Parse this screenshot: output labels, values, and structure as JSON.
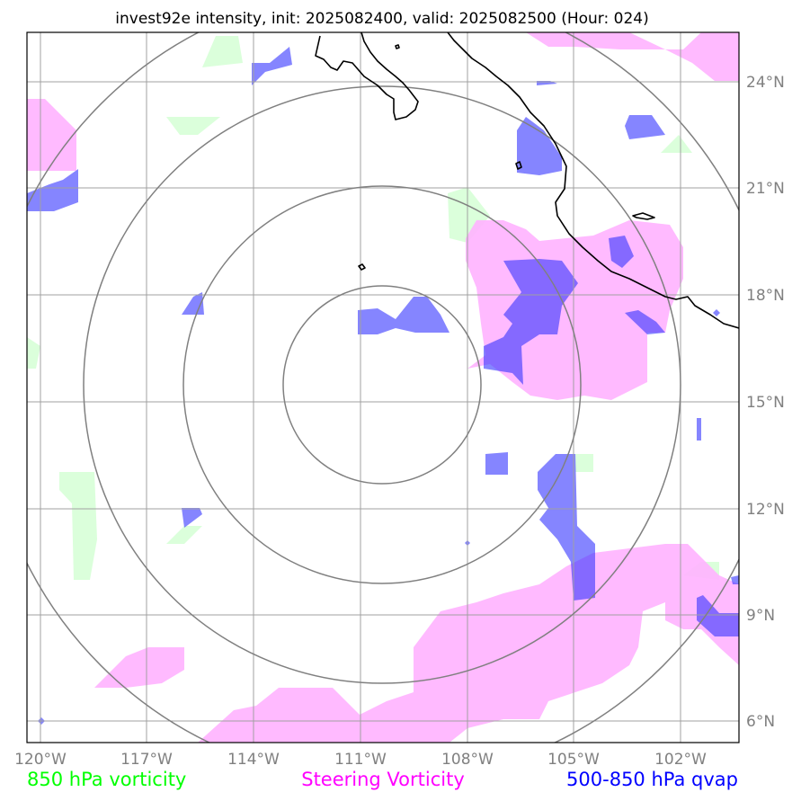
{
  "title": "invest92e intensity, init: 2025082400, valid: 2025082500 (Hour: 024)",
  "lon_labels": [
    "120°W",
    "117°W",
    "114°W",
    "111°W",
    "108°W",
    "105°W",
    "102°W"
  ],
  "lat_labels": [
    "24°N",
    "21°N",
    "18°N",
    "15°N",
    "12°N",
    "9°N",
    "6°N"
  ],
  "legend": {
    "vort850": "850 hPa vorticity",
    "steering": "Steering Vorticity",
    "qvap": "500-850 hPa qvap"
  },
  "colors": {
    "vort850": "#00ff00",
    "steering": "#ff00ff",
    "qvap": "#0000ff"
  }
}
